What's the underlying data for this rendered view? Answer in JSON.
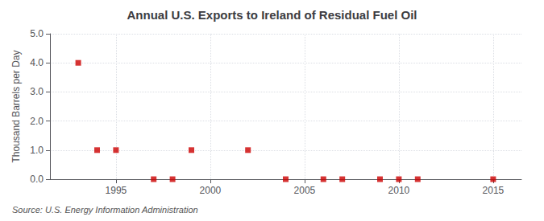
{
  "chart_data": {
    "type": "scatter",
    "title": "Annual U.S. Exports to Ireland of Residual Fuel Oil",
    "ylabel": "Thousand Barrels per Day",
    "source": "Source: U.S. Energy Information Administration",
    "x": [
      1993,
      1994,
      1995,
      1997,
      1998,
      1999,
      2002,
      2004,
      2006,
      2007,
      2009,
      2010,
      2011,
      2015
    ],
    "values": [
      4.0,
      1.0,
      1.0,
      0.0,
      0.0,
      1.0,
      1.0,
      0.0,
      0.0,
      0.0,
      0.0,
      0.0,
      0.0,
      0.0
    ],
    "color": "#cc0000",
    "marker": "square",
    "xlim": [
      1991.5,
      2016.5
    ],
    "ylim": [
      0.0,
      5.0
    ],
    "xticks": [
      1995,
      2000,
      2005,
      2010,
      2015
    ],
    "yticks": [
      {
        "value": 0.0,
        "label": "0.0"
      },
      {
        "value": 1.0,
        "label": "1.0"
      },
      {
        "value": 2.0,
        "label": "2.0"
      },
      {
        "value": 3.0,
        "label": "3.0"
      },
      {
        "value": 4.0,
        "label": "4.0"
      },
      {
        "value": 5.0,
        "label": "5.0"
      }
    ],
    "grid": true
  }
}
